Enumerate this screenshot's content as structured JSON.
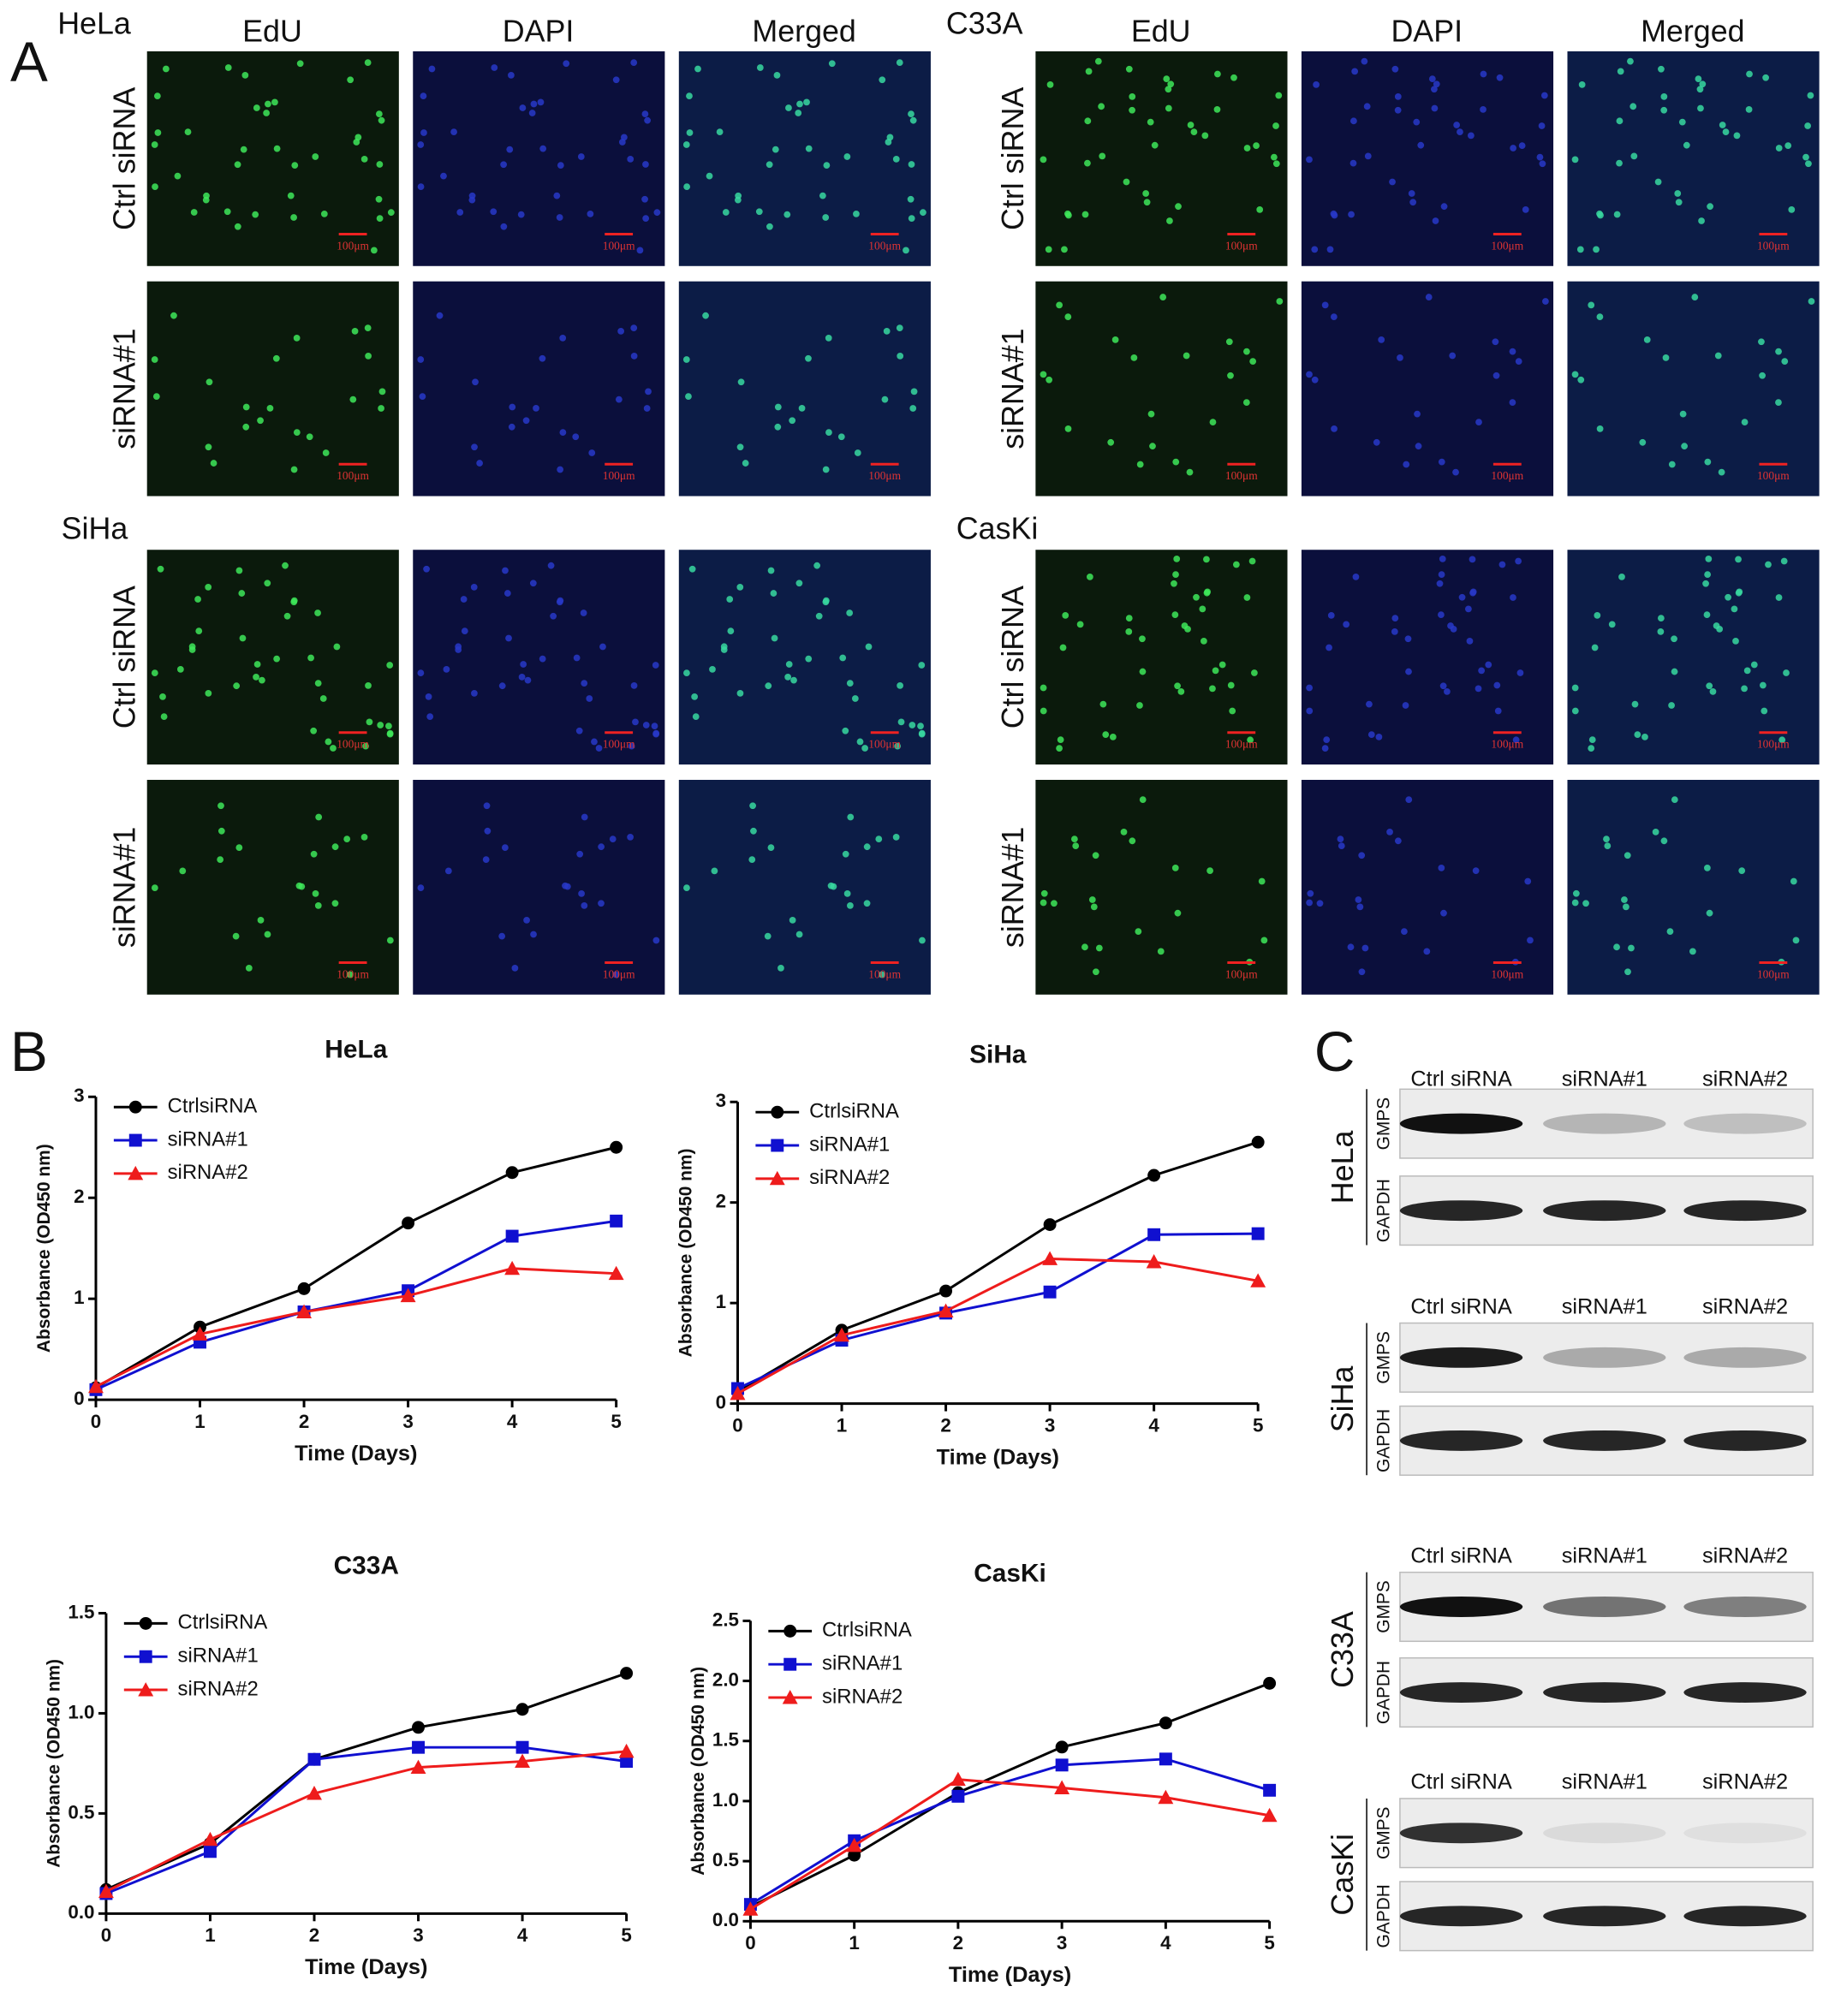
{
  "panel_a": {
    "label": "A",
    "columns": [
      "EdU",
      "DAPI",
      "Merged"
    ],
    "row_labels": [
      "Ctrl siRNA",
      "siRNA#1"
    ],
    "blocks": [
      "HeLa",
      "C33A",
      "SiHa",
      "CasKi"
    ],
    "scale_bar": "100μm"
  },
  "panel_b": {
    "label": "B"
  },
  "chart_data": [
    {
      "type": "line",
      "title": "HeLa",
      "x_label": "Time (Days)",
      "y_label": "Absorbance (OD450 nm)",
      "x": [
        0,
        1,
        2,
        3,
        4,
        5
      ],
      "xlim": [
        0,
        5
      ],
      "xticks": [
        0,
        1,
        2,
        3,
        4,
        5
      ],
      "ylim": [
        0,
        3
      ],
      "yticks": [
        0,
        1,
        2,
        3
      ],
      "series": [
        {
          "name": "CtrlsiRNA",
          "color": "#000000",
          "marker": "circle",
          "values": [
            0.12,
            0.72,
            1.1,
            1.75,
            2.25,
            2.5
          ]
        },
        {
          "name": "siRNA#1",
          "color": "#1010d0",
          "marker": "square",
          "values": [
            0.1,
            0.57,
            0.87,
            1.08,
            1.62,
            1.77
          ]
        },
        {
          "name": "siRNA#2",
          "color": "#ee1c1c",
          "marker": "triangle",
          "values": [
            0.13,
            0.65,
            0.87,
            1.03,
            1.3,
            1.25
          ]
        }
      ]
    },
    {
      "type": "line",
      "title": "SiHa",
      "x_label": "Time (Days)",
      "y_label": "Absorbance (OD450 nm)",
      "x": [
        0,
        1,
        2,
        3,
        4,
        5
      ],
      "xlim": [
        0,
        5
      ],
      "xticks": [
        0,
        1,
        2,
        3,
        4,
        5
      ],
      "ylim": [
        0,
        3
      ],
      "yticks": [
        0,
        1,
        2,
        3
      ],
      "series": [
        {
          "name": "CtrlsiRNA",
          "color": "#000000",
          "marker": "circle",
          "values": [
            0.12,
            0.73,
            1.12,
            1.78,
            2.27,
            2.6
          ]
        },
        {
          "name": "siRNA#1",
          "color": "#1010d0",
          "marker": "square",
          "values": [
            0.15,
            0.63,
            0.9,
            1.11,
            1.68,
            1.69
          ]
        },
        {
          "name": "siRNA#2",
          "color": "#ee1c1c",
          "marker": "triangle",
          "values": [
            0.1,
            0.68,
            0.92,
            1.44,
            1.41,
            1.22
          ]
        }
      ]
    },
    {
      "type": "line",
      "title": "C33A",
      "x_label": "Time (Days)",
      "y_label": "Absorbance (OD450 nm)",
      "x": [
        0,
        1,
        2,
        3,
        4,
        5
      ],
      "xlim": [
        0,
        5
      ],
      "xticks": [
        0,
        1,
        2,
        3,
        4,
        5
      ],
      "ylim": [
        0,
        1.5
      ],
      "yticks": [
        {
          "value": 0,
          "label": "0.0"
        },
        0.5,
        {
          "value": 1,
          "label": "1.0"
        },
        1.5
      ],
      "series": [
        {
          "name": "CtrlsiRNA",
          "color": "#000000",
          "marker": "circle",
          "values": [
            0.12,
            0.35,
            0.77,
            0.93,
            1.02,
            1.2
          ]
        },
        {
          "name": "siRNA#1",
          "color": "#1010d0",
          "marker": "square",
          "values": [
            0.1,
            0.31,
            0.77,
            0.83,
            0.83,
            0.76
          ]
        },
        {
          "name": "siRNA#2",
          "color": "#ee1c1c",
          "marker": "triangle",
          "values": [
            0.11,
            0.37,
            0.6,
            0.73,
            0.76,
            0.81
          ]
        }
      ]
    },
    {
      "type": "line",
      "title": "CasKi",
      "x_label": "Time (Days)",
      "y_label": "Absorbance (OD450 nm)",
      "x": [
        0,
        1,
        2,
        3,
        4,
        5
      ],
      "xlim": [
        0,
        5
      ],
      "xticks": [
        0,
        1,
        2,
        3,
        4,
        5
      ],
      "ylim": [
        0,
        2.5
      ],
      "yticks": [
        {
          "value": 0,
          "label": "0.0"
        },
        0.5,
        {
          "value": 1,
          "label": "1.0"
        },
        1.5,
        {
          "value": 2,
          "label": "2.0"
        },
        2.5
      ],
      "series": [
        {
          "name": "CtrlsiRNA",
          "color": "#000000",
          "marker": "circle",
          "values": [
            0.12,
            0.55,
            1.07,
            1.45,
            1.65,
            1.98
          ]
        },
        {
          "name": "siRNA#1",
          "color": "#1010d0",
          "marker": "square",
          "values": [
            0.14,
            0.67,
            1.04,
            1.3,
            1.35,
            1.09
          ]
        },
        {
          "name": "siRNA#2",
          "color": "#ee1c1c",
          "marker": "triangle",
          "values": [
            0.1,
            0.63,
            1.18,
            1.11,
            1.03,
            0.88
          ]
        }
      ]
    }
  ],
  "panel_c": {
    "label": "C",
    "lanes": [
      "Ctrl siRNA",
      "siRNA#1",
      "siRNA#2"
    ],
    "proteins": [
      "GMPS",
      "GAPDH"
    ],
    "blots": [
      "HeLa",
      "SiHa",
      "C33A",
      "CasKi"
    ]
  }
}
